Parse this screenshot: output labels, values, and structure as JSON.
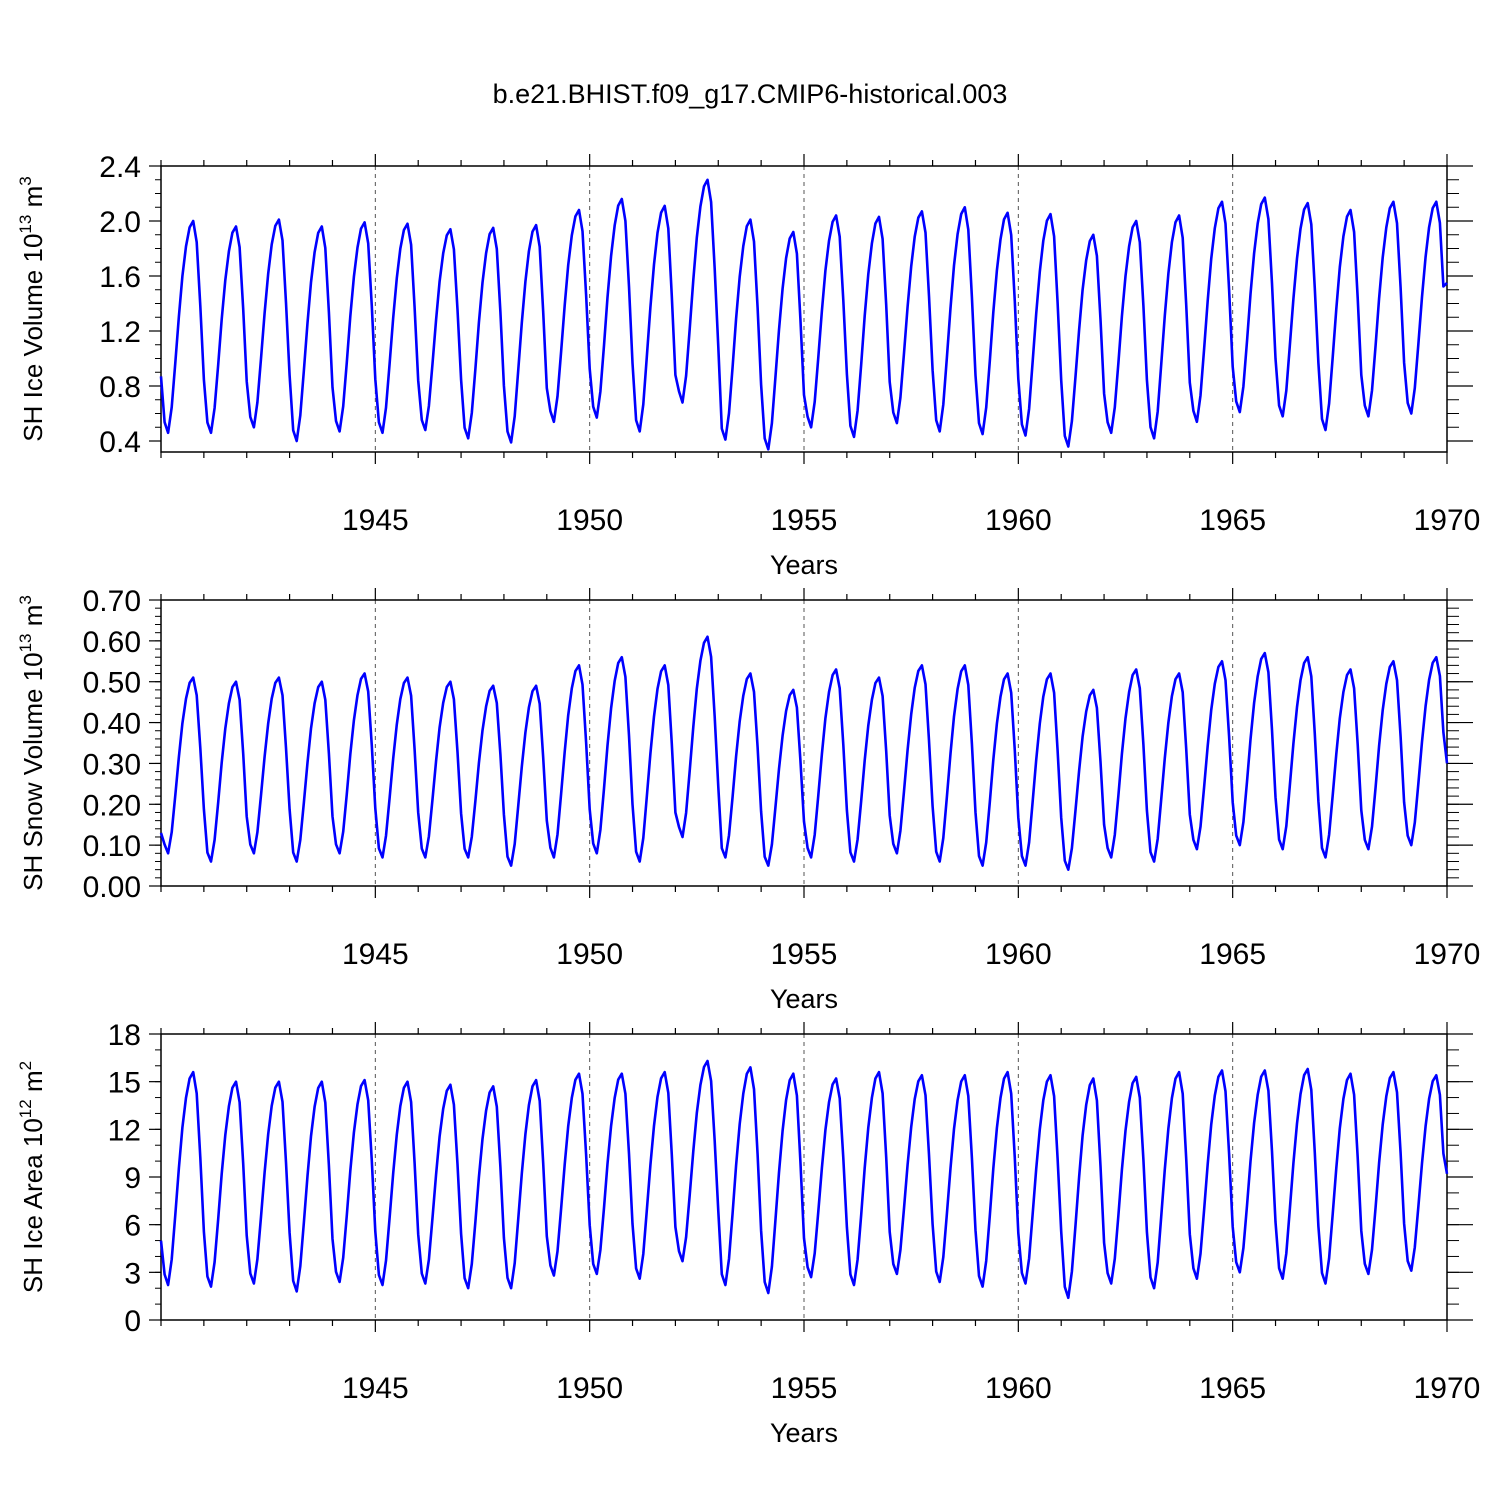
{
  "page_title": "b.e21.BHIST.f09_g17.CMIP6-historical.003",
  "series_color": "#0000ff",
  "chart_data": [
    {
      "type": "line",
      "title": "b.e21.BHIST.f09_g17.CMIP6-historical.003",
      "ylabel_main": "SH Ice Volume 10",
      "ylabel_exp1": "13",
      "ylabel_unit": " m",
      "ylabel_exp2": "3",
      "xlabel": "Years",
      "xlim": [
        1940.0,
        1970.0
      ],
      "ylim": [
        0.32,
        2.4
      ],
      "yticks": [
        0.4,
        0.8,
        1.2,
        1.6,
        2.0,
        2.4
      ],
      "ytick_labels": [
        "0.4",
        "0.8",
        "1.2",
        "1.6",
        "2.0",
        "2.4"
      ],
      "yminor": [
        0.4,
        0.5,
        0.6,
        0.7,
        0.8,
        0.9,
        1.0,
        1.1,
        1.2,
        1.3,
        1.4,
        1.5,
        1.6,
        1.7,
        1.8,
        1.9,
        2.0,
        2.1,
        2.2,
        2.3,
        2.4
      ],
      "xticks": [
        1945,
        1950,
        1955,
        1960,
        1965,
        1970
      ],
      "xtick_labels": [
        "1945",
        "1950",
        "1955",
        "1960",
        "1965",
        "1970"
      ],
      "annual_max": [
        2.0,
        1.96,
        2.01,
        1.96,
        1.99,
        1.98,
        1.94,
        1.95,
        1.97,
        2.08,
        2.16,
        2.11,
        2.3,
        2.01,
        1.92,
        2.04,
        2.03,
        2.07,
        2.1,
        2.06,
        2.05,
        1.9,
        2.0,
        2.04,
        2.14,
        2.17,
        2.13,
        2.08,
        2.14,
        2.14
      ],
      "annual_min": [
        0.46,
        0.46,
        0.5,
        0.4,
        0.47,
        0.46,
        0.48,
        0.42,
        0.39,
        0.54,
        0.57,
        0.47,
        0.68,
        0.41,
        0.34,
        0.5,
        0.43,
        0.53,
        0.47,
        0.45,
        0.44,
        0.36,
        0.46,
        0.42,
        0.54,
        0.61,
        0.58,
        0.48,
        0.58,
        0.6
      ],
      "start_value": 0.87,
      "end_value": 1.55
    },
    {
      "type": "line",
      "ylabel_main": "SH Snow Volume 10",
      "ylabel_exp1": "13",
      "ylabel_unit": " m",
      "ylabel_exp2": "3",
      "xlabel": "Years",
      "xlim": [
        1940.0,
        1970.0
      ],
      "ylim": [
        0.0,
        0.7
      ],
      "yticks": [
        0.0,
        0.1,
        0.2,
        0.3,
        0.4,
        0.5,
        0.6,
        0.7
      ],
      "ytick_labels": [
        "0.00",
        "0.10",
        "0.20",
        "0.30",
        "0.40",
        "0.50",
        "0.60",
        "0.70"
      ],
      "yminor": [
        0.0,
        0.02,
        0.04,
        0.06,
        0.08,
        0.1,
        0.12,
        0.14,
        0.16,
        0.18,
        0.2,
        0.22,
        0.24,
        0.26,
        0.28,
        0.3,
        0.32,
        0.34,
        0.36,
        0.38,
        0.4,
        0.42,
        0.44,
        0.46,
        0.48,
        0.5,
        0.52,
        0.54,
        0.56,
        0.58,
        0.6,
        0.62,
        0.64,
        0.66,
        0.68,
        0.7
      ],
      "xticks": [
        1945,
        1950,
        1955,
        1960,
        1965,
        1970
      ],
      "xtick_labels": [
        "1945",
        "1950",
        "1955",
        "1960",
        "1965",
        "1970"
      ],
      "annual_max": [
        0.51,
        0.5,
        0.51,
        0.5,
        0.52,
        0.51,
        0.5,
        0.49,
        0.49,
        0.54,
        0.56,
        0.54,
        0.61,
        0.52,
        0.48,
        0.53,
        0.51,
        0.54,
        0.54,
        0.52,
        0.52,
        0.48,
        0.53,
        0.52,
        0.55,
        0.57,
        0.56,
        0.53,
        0.55,
        0.56
      ],
      "annual_min": [
        0.08,
        0.06,
        0.08,
        0.06,
        0.08,
        0.07,
        0.07,
        0.07,
        0.05,
        0.07,
        0.08,
        0.06,
        0.12,
        0.07,
        0.05,
        0.07,
        0.06,
        0.08,
        0.06,
        0.05,
        0.05,
        0.04,
        0.07,
        0.06,
        0.09,
        0.1,
        0.09,
        0.07,
        0.09,
        0.1
      ],
      "start_value": 0.13,
      "end_value": 0.3
    },
    {
      "type": "line",
      "ylabel_main": "SH Ice Area 10",
      "ylabel_exp1": "12",
      "ylabel_unit": " m",
      "ylabel_exp2": "2",
      "xlabel": "Years",
      "xlim": [
        1940.0,
        1970.0
      ],
      "ylim": [
        0,
        18
      ],
      "yticks": [
        0,
        3,
        6,
        9,
        12,
        15,
        18
      ],
      "ytick_labels": [
        "0",
        "3",
        "6",
        "9",
        "12",
        "15",
        "18"
      ],
      "yminor": [
        0,
        1,
        2,
        3,
        4,
        5,
        6,
        7,
        8,
        9,
        10,
        11,
        12,
        13,
        14,
        15,
        16,
        17,
        18
      ],
      "xticks": [
        1945,
        1950,
        1955,
        1960,
        1965,
        1970
      ],
      "xtick_labels": [
        "1945",
        "1950",
        "1955",
        "1960",
        "1965",
        "1970"
      ],
      "annual_max": [
        15.6,
        15.0,
        15.0,
        15.0,
        15.1,
        15.0,
        14.8,
        14.7,
        15.1,
        15.5,
        15.5,
        15.6,
        16.3,
        15.9,
        15.5,
        15.2,
        15.6,
        15.4,
        15.4,
        15.6,
        15.4,
        15.2,
        15.3,
        15.6,
        15.7,
        15.7,
        15.8,
        15.5,
        15.6,
        15.4
      ],
      "annual_min": [
        2.2,
        2.1,
        2.3,
        1.8,
        2.4,
        2.2,
        2.3,
        2.0,
        2.0,
        2.8,
        2.9,
        2.6,
        3.7,
        2.2,
        1.7,
        2.7,
        2.2,
        2.9,
        2.4,
        2.1,
        2.3,
        1.4,
        2.3,
        2.0,
        2.6,
        3.0,
        2.6,
        2.3,
        2.9,
        3.1
      ],
      "start_value": 5.0,
      "end_value": 9.2
    }
  ]
}
